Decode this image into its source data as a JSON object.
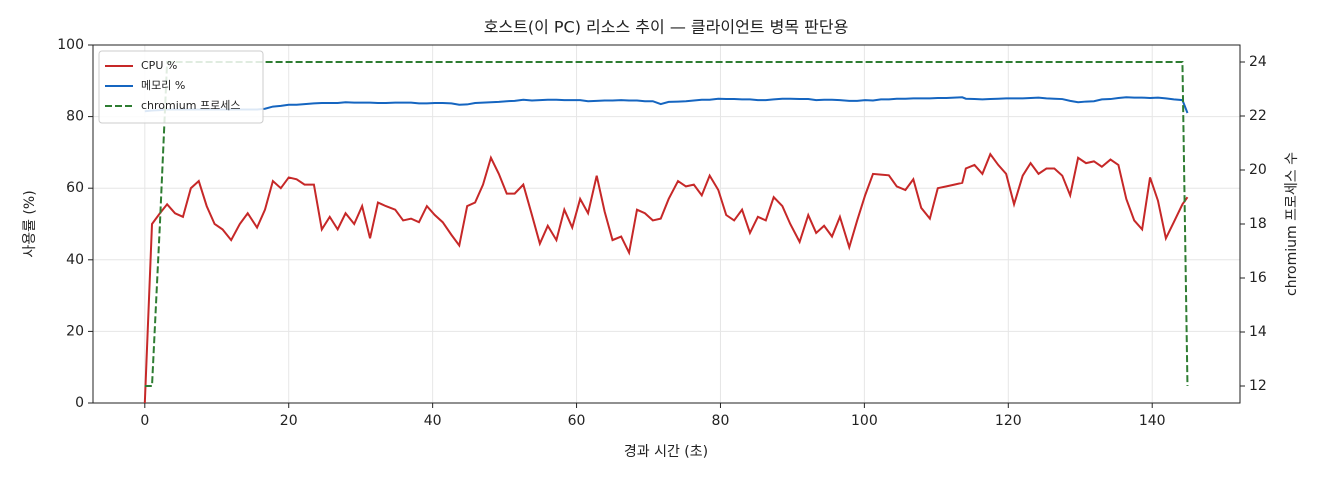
{
  "chart_data": {
    "type": "line",
    "title": "호스트(이 PC) 리소스 추이 — 클라이언트 병목 판단용",
    "xlabel": "경과 시간 (초)",
    "ylabel": "사용률 (%)",
    "y2label": "chromium 프로세스 수",
    "x": [
      0,
      1,
      2.1,
      3.1,
      4.2,
      5.3,
      6.4,
      7.5,
      8.6,
      9.7,
      10.8,
      12,
      13.2,
      14.3,
      15.6,
      16.7,
      17.8,
      18.9,
      20,
      21.1,
      22.2,
      23.5,
      24.6,
      25.7,
      26.8,
      27.9,
      29.1,
      30.2,
      31.3,
      32.4,
      33.5,
      34.8,
      35.9,
      37,
      38.1,
      39.2,
      40.3,
      41.4,
      42.6,
      43.7,
      44.8,
      45.9,
      47,
      48.1,
      49.2,
      50.3,
      51.4,
      52.6,
      53.8,
      54.9,
      56,
      57.2,
      58.3,
      59.4,
      60.5,
      61.6,
      62.8,
      63.9,
      65,
      66.2,
      67.3,
      68.4,
      69.5,
      70.6,
      71.7,
      72.8,
      74.1,
      75.2,
      76.3,
      77.4,
      78.5,
      79.7,
      80.8,
      81.9,
      83,
      84.1,
      85.2,
      86.3,
      87.4,
      88.6,
      89.7,
      91,
      92.2,
      93.3,
      94.4,
      95.5,
      96.6,
      97.9,
      99,
      100.1,
      101.2,
      102.3,
      103.4,
      104.5,
      105.7,
      106.8,
      107.9,
      109.1,
      110.2,
      111.4,
      112.5,
      113.6,
      114.1,
      115.3,
      116.4,
      117.5,
      118.6,
      119.7,
      120.8,
      122,
      123.1,
      124.2,
      125.3,
      126.4,
      127.5,
      128.6,
      129.7,
      130.8,
      131.9,
      133,
      134.2,
      135.3,
      136.4,
      137.5,
      138.6,
      139.7,
      140.8,
      141.9,
      143,
      144.2,
      144.9
    ],
    "series": [
      {
        "name": "CPU %",
        "color": "#c62828",
        "values": [
          0,
          50,
          53,
          55.5,
          53,
          52,
          60,
          62,
          55,
          50,
          48.5,
          45.5,
          50,
          53,
          49,
          54,
          62,
          60,
          63,
          62.5,
          61,
          61,
          48.5,
          52,
          48.5,
          53,
          50,
          55,
          46,
          56,
          55,
          54,
          51,
          51.5,
          50.5,
          55,
          52.5,
          50.5,
          47,
          44,
          55,
          56,
          61,
          68.5,
          64,
          58.5,
          58.5,
          61,
          52.5,
          44.5,
          49.5,
          45.5,
          54,
          49,
          57,
          53,
          63.5,
          53.5,
          45.5,
          46.5,
          42,
          54,
          53,
          51,
          51.5,
          57,
          62,
          60.5,
          61,
          58,
          63.5,
          59.5,
          52.5,
          51,
          54,
          47.5,
          52,
          51,
          57.5,
          55,
          50,
          45,
          52.5,
          47.5,
          49.5,
          46.5,
          52,
          43.5,
          51,
          58,
          64,
          63.8,
          63.6,
          60.5,
          59.5,
          62.5,
          54.5,
          51.5,
          60,
          60.5,
          61,
          61.5,
          65.5,
          66.5,
          64,
          69.5,
          66.5,
          64,
          55.5,
          63.5,
          67,
          64,
          65.5,
          65.5,
          63.5,
          58,
          68.5,
          67,
          67.5,
          66,
          68,
          66.5,
          57,
          51,
          48.5,
          63,
          56.5,
          46,
          50.5,
          55.5,
          57.5
        ]
      },
      {
        "name": "메모리 %",
        "color": "#1565c0",
        "values": [
          81.5,
          81.7,
          81.8,
          82,
          82,
          82,
          82,
          82,
          82,
          82,
          82,
          82,
          82,
          82,
          82,
          82.2,
          82.8,
          83,
          83.3,
          83.3,
          83.5,
          83.7,
          83.8,
          83.8,
          83.8,
          84,
          83.9,
          83.9,
          83.9,
          83.8,
          83.8,
          83.9,
          83.9,
          83.9,
          83.7,
          83.7,
          83.8,
          83.8,
          83.7,
          83.3,
          83.4,
          83.8,
          83.9,
          84,
          84.1,
          84.3,
          84.4,
          84.7,
          84.5,
          84.6,
          84.7,
          84.7,
          84.6,
          84.6,
          84.6,
          84.3,
          84.4,
          84.5,
          84.5,
          84.6,
          84.5,
          84.5,
          84.3,
          84.3,
          83.5,
          84.1,
          84.2,
          84.3,
          84.5,
          84.7,
          84.7,
          85,
          84.9,
          84.9,
          84.8,
          84.8,
          84.6,
          84.6,
          84.8,
          85,
          85,
          84.9,
          84.9,
          84.6,
          84.7,
          84.7,
          84.6,
          84.4,
          84.4,
          84.6,
          84.5,
          84.8,
          84.8,
          85,
          85,
          85.1,
          85.1,
          85.1,
          85.2,
          85.2,
          85.3,
          85.4,
          85,
          84.9,
          84.8,
          84.9,
          85,
          85.1,
          85.1,
          85.1,
          85.2,
          85.3,
          85.1,
          85,
          84.9,
          84.4,
          84,
          84.2,
          84.3,
          84.8,
          84.9,
          85.2,
          85.4,
          85.3,
          85.3,
          85.2,
          85.3,
          85.1,
          84.8,
          84.6,
          81
        ]
      },
      {
        "name": "chromium 프로세스",
        "color": "#2e7d32",
        "linestyle": "dashed",
        "axis": "y2",
        "values": [
          12,
          12,
          18,
          24,
          24,
          24,
          24,
          24,
          24,
          24,
          24,
          24,
          24,
          24,
          24,
          24,
          24,
          24,
          24,
          24,
          24,
          24,
          24,
          24,
          24,
          24,
          24,
          24,
          24,
          24,
          24,
          24,
          24,
          24,
          24,
          24,
          24,
          24,
          24,
          24,
          24,
          24,
          24,
          24,
          24,
          24,
          24,
          24,
          24,
          24,
          24,
          24,
          24,
          24,
          24,
          24,
          24,
          24,
          24,
          24,
          24,
          24,
          24,
          24,
          24,
          24,
          24,
          24,
          24,
          24,
          24,
          24,
          24,
          24,
          24,
          24,
          24,
          24,
          24,
          24,
          24,
          24,
          24,
          24,
          24,
          24,
          24,
          24,
          24,
          24,
          24,
          24,
          24,
          24,
          24,
          24,
          24,
          24,
          24,
          24,
          24,
          24,
          24,
          24,
          24,
          24,
          24,
          24,
          24,
          24,
          24,
          24,
          24,
          24,
          24,
          24,
          24,
          24,
          24,
          24,
          24,
          24,
          24,
          24,
          24,
          24,
          24,
          24,
          24,
          24,
          12
        ]
      }
    ],
    "xlim": [
      -7.2,
      152.2
    ],
    "xticks": [
      0,
      20,
      40,
      60,
      80,
      100,
      120,
      140
    ],
    "ylim": [
      0,
      100
    ],
    "yticks": [
      0,
      20,
      40,
      60,
      80,
      100
    ],
    "y2lim": [
      11.37,
      24.63
    ],
    "y2ticks": [
      12,
      14,
      16,
      18,
      20,
      22,
      24
    ],
    "grid": true,
    "legend": "upper-left"
  }
}
